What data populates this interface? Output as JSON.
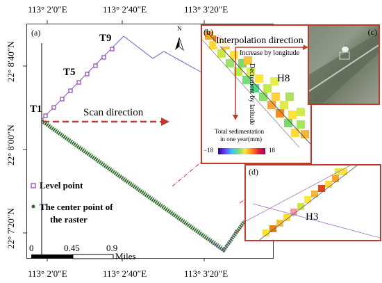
{
  "figure": {
    "top_axis_ticks": [
      "113° 2′0″E",
      "113° 2′40″E",
      "113° 3′20″E"
    ],
    "bottom_axis_ticks": [
      "113° 2′0″E",
      "113° 2′40″E",
      "113° 3′20″E"
    ],
    "left_axis_ticks": [
      "22° 8′40″N",
      "22° 8′00″N",
      "22° 7′20″N"
    ],
    "north_label": "N",
    "panels": {
      "a": "(a)",
      "b": "(b)",
      "c": "(c)",
      "d": "(d)"
    },
    "point_labels": {
      "t1": "T1",
      "t5": "T5",
      "t9": "T9",
      "h8": "H8",
      "h3": "H3"
    },
    "scan_direction": "Scan direction",
    "interpolation_direction": "Interpolation direction",
    "increase_by_longitude": "Increase by longitude",
    "decrement_by_latitude": "Decrement by latitude",
    "colorbar_title_line1": "Total sedimentation",
    "colorbar_title_line2": "in one year(mm)",
    "colorbar_min": "−18",
    "colorbar_max": "18",
    "legend": {
      "level_point": "Level point",
      "center_point_line1": "The center point of",
      "center_point_line2": "the raster"
    },
    "scalebar": {
      "tick0": "0",
      "tick1": "0.45",
      "tick2": "0.9",
      "unit": "Miles"
    },
    "colors": {
      "frame_red": "#c0392b",
      "level_point": "#8e44ad",
      "raster_green": "#2e6b2e",
      "scan_arrow": "#c0392b"
    }
  }
}
